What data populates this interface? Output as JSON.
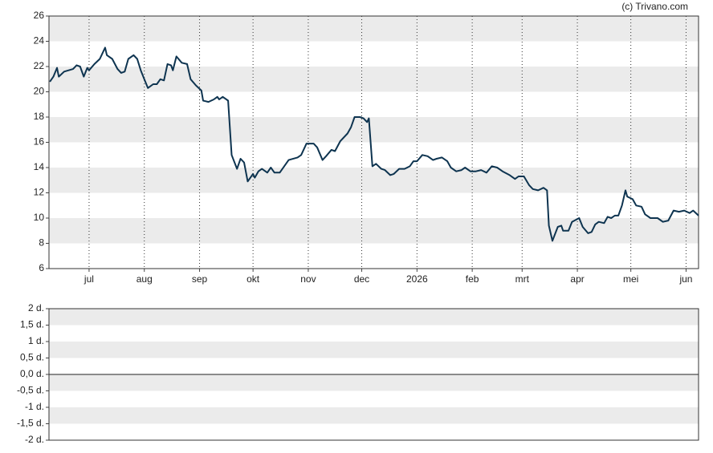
{
  "credit": "(c) Trivano.com",
  "chart_data": [
    {
      "type": "line",
      "color": "#0e3450",
      "x": [
        -22,
        -20,
        -18,
        -17,
        -14,
        -9,
        -7,
        -5,
        -3,
        -1,
        0,
        3,
        6,
        9,
        10,
        13,
        16,
        18,
        20,
        22,
        25,
        27,
        29,
        31,
        33,
        36,
        38,
        40,
        42,
        44,
        46,
        47,
        49,
        52,
        55,
        57,
        60,
        63,
        64,
        67,
        70,
        72,
        73,
        75,
        78,
        80,
        83,
        85,
        87,
        89,
        92,
        93,
        95,
        97,
        100,
        102,
        104,
        107,
        110,
        112,
        117,
        119,
        122,
        126,
        128,
        131,
        133,
        136,
        138,
        141,
        145,
        147,
        149,
        152,
        154,
        156,
        157,
        159,
        161,
        164,
        166,
        169,
        171,
        174,
        177,
        180,
        182,
        184,
        187,
        190,
        193,
        195,
        198,
        201,
        203,
        206,
        209,
        211,
        214,
        217,
        220,
        223,
        226,
        229,
        232,
        236,
        239,
        241,
        244,
        247,
        249,
        252,
        255,
        257,
        258,
        260,
        263,
        265,
        266,
        269,
        271,
        275,
        277,
        280,
        282,
        284,
        286,
        289,
        291,
        293,
        295,
        297,
        299,
        301,
        302,
        305,
        307,
        310,
        312,
        315,
        319,
        322,
        325,
        328,
        331,
        334,
        337,
        339,
        342
      ],
      "values": [
        20.8,
        21.2,
        21.9,
        21.2,
        21.6,
        21.8,
        22.1,
        22.0,
        21.2,
        21.9,
        21.7,
        22.2,
        22.6,
        23.5,
        22.9,
        22.6,
        21.8,
        21.5,
        21.6,
        22.6,
        22.9,
        22.6,
        21.7,
        21.0,
        20.3,
        20.6,
        20.6,
        21.0,
        20.9,
        22.2,
        22.1,
        21.7,
        22.8,
        22.3,
        22.2,
        21.0,
        20.5,
        20.1,
        19.3,
        19.2,
        19.4,
        19.6,
        19.4,
        19.6,
        19.3,
        15.0,
        13.9,
        14.7,
        14.4,
        12.9,
        13.5,
        13.2,
        13.7,
        13.9,
        13.6,
        14.0,
        13.6,
        13.6,
        14.2,
        14.6,
        14.8,
        15.0,
        15.9,
        15.9,
        15.6,
        14.6,
        14.9,
        15.4,
        15.3,
        16.1,
        16.7,
        17.2,
        18.0,
        18.0,
        17.9,
        17.6,
        17.9,
        14.1,
        14.3,
        13.9,
        13.8,
        13.4,
        13.5,
        13.9,
        13.9,
        14.1,
        14.5,
        14.5,
        15.0,
        14.9,
        14.6,
        14.7,
        14.8,
        14.5,
        14.0,
        13.7,
        13.8,
        14.0,
        13.7,
        13.7,
        13.8,
        13.6,
        14.1,
        14.0,
        13.7,
        13.4,
        13.1,
        13.3,
        13.3,
        12.6,
        12.3,
        12.2,
        12.4,
        12.2,
        9.4,
        8.2,
        9.3,
        9.4,
        9.0,
        9.0,
        9.7,
        10.0,
        9.3,
        8.8,
        8.9,
        9.5,
        9.7,
        9.6,
        10.1,
        10.0,
        10.2,
        10.2,
        11.0,
        12.2,
        11.7,
        11.5,
        11.0,
        10.9,
        10.3,
        10.0,
        10.0,
        9.7,
        9.8,
        10.6,
        10.5,
        10.6,
        10.4,
        10.6,
        10.2
      ],
      "xlim": [
        -22.5,
        342
      ],
      "xticks": [
        {
          "value": 0,
          "label": "jul"
        },
        {
          "value": 31,
          "label": "aug"
        },
        {
          "value": 62,
          "label": "sep"
        },
        {
          "value": 92,
          "label": "okt"
        },
        {
          "value": 123,
          "label": "nov"
        },
        {
          "value": 153,
          "label": "dec"
        },
        {
          "value": 184,
          "label": "2026"
        },
        {
          "value": 215,
          "label": "feb"
        },
        {
          "value": 243,
          "label": "mrt"
        },
        {
          "value": 274,
          "label": "apr"
        },
        {
          "value": 304,
          "label": "mei"
        },
        {
          "value": 335,
          "label": "jun"
        }
      ],
      "ylim": [
        6,
        26
      ],
      "yticks": [
        6,
        8,
        10,
        12,
        14,
        16,
        18,
        20,
        22,
        24,
        26
      ],
      "grid": true
    },
    {
      "type": "line",
      "ylim": [
        -2,
        2
      ],
      "yticks": [
        {
          "value": 2,
          "label": "2 d."
        },
        {
          "value": 1.5,
          "label": "1,5 d."
        },
        {
          "value": 1,
          "label": "1 d."
        },
        {
          "value": 0.5,
          "label": "0,5 d."
        },
        {
          "value": 0,
          "label": "0,0 d."
        },
        {
          "value": -0.5,
          "label": "-0,5 d."
        },
        {
          "value": -1,
          "label": "-1 d."
        },
        {
          "value": -1.5,
          "label": "-1,5 d."
        },
        {
          "value": -2,
          "label": "-2 d."
        }
      ]
    }
  ]
}
